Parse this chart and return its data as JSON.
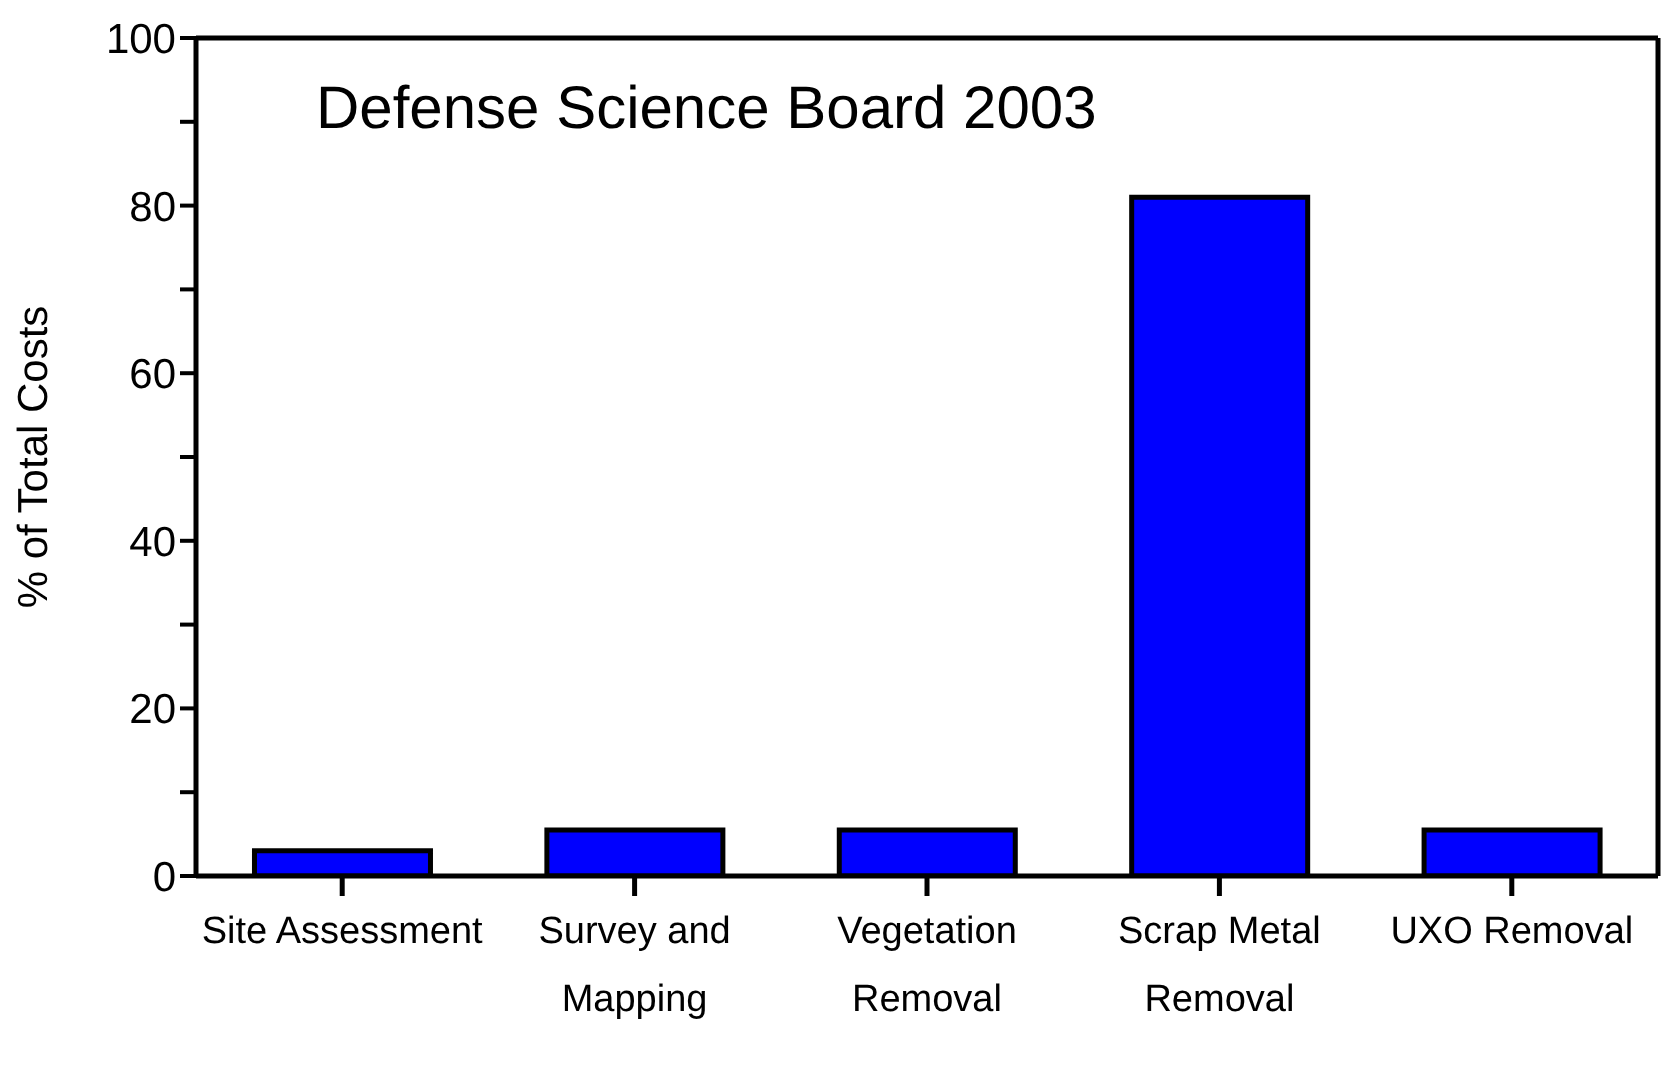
{
  "chart_data": {
    "type": "bar",
    "ylabel": "% of Total Costs",
    "annotations": [
      "Defense Science Board 2003"
    ],
    "categories": [
      "Site Assessment",
      "Survey and Mapping",
      "Vegetation Removal",
      "Scrap Metal Removal",
      "UXO Removal"
    ],
    "values": [
      3,
      5.5,
      5.5,
      81,
      5.5
    ],
    "color": "#0000ff",
    "ylim": [
      0,
      100
    ],
    "yticks": [
      0,
      {
        "value": 10,
        "label": null
      },
      20,
      {
        "value": 30,
        "label": null
      },
      40,
      {
        "value": 50,
        "label": null
      },
      60,
      {
        "value": 70,
        "label": null
      },
      80,
      {
        "value": 90,
        "label": null
      },
      100
    ],
    "grid": false,
    "legend": false
  }
}
